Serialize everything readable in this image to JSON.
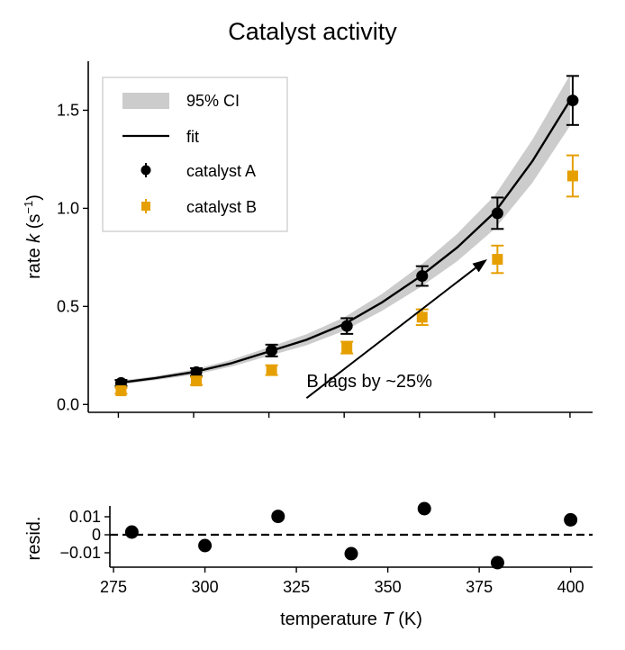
{
  "chart_data": [
    {
      "type": "scatter",
      "title": "Catalyst activity",
      "ylabel_prefix": "rate ",
      "ylabel_var": "k",
      "ylabel_unit": " (s",
      "ylabel_exp": "−1",
      "ylabel_close": ")",
      "xlim": [
        272,
        406
      ],
      "ylim": [
        -0.04,
        1.75
      ],
      "x": [
        280,
        300,
        320,
        340,
        360,
        380,
        400
      ],
      "xticks": [
        280,
        300,
        320,
        340,
        360,
        380,
        400
      ],
      "yticks": [
        0.0,
        0.5,
        1.0,
        1.5
      ],
      "ytick_labels": [
        "0.0",
        "0.5",
        "1.0",
        "1.5"
      ],
      "grid": false,
      "legend_position": "top-left",
      "series": [
        {
          "name": "catalyst A",
          "marker": "circle",
          "color": "#000000",
          "values": [
            0.11,
            0.165,
            0.275,
            0.4,
            0.655,
            0.975,
            1.55
          ],
          "errors": [
            0.015,
            0.02,
            0.03,
            0.04,
            0.05,
            0.08,
            0.125
          ]
        },
        {
          "name": "catalyst B",
          "marker": "square",
          "color": "#E69F00",
          "values": [
            0.07,
            0.12,
            0.175,
            0.29,
            0.445,
            0.74,
            1.165
          ],
          "errors": [
            0.015,
            0.02,
            0.025,
            0.03,
            0.04,
            0.07,
            0.105
          ]
        },
        {
          "name": "fit",
          "type": "line",
          "color": "#000000",
          "x": [
            280,
            290,
            300,
            310,
            320,
            330,
            340,
            350,
            360,
            370,
            380,
            390,
            400
          ],
          "values": [
            0.11,
            0.135,
            0.165,
            0.21,
            0.27,
            0.33,
            0.41,
            0.52,
            0.65,
            0.8,
            0.98,
            1.24,
            1.55
          ]
        },
        {
          "name": "95% CI",
          "type": "area",
          "color": "#cccccc",
          "x": [
            280,
            290,
            300,
            310,
            320,
            330,
            340,
            350,
            360,
            370,
            380,
            390,
            400
          ],
          "lower": [
            0.1,
            0.125,
            0.152,
            0.193,
            0.248,
            0.302,
            0.376,
            0.477,
            0.595,
            0.73,
            0.895,
            1.13,
            1.42
          ],
          "upper": [
            0.12,
            0.145,
            0.178,
            0.227,
            0.292,
            0.358,
            0.444,
            0.563,
            0.705,
            0.87,
            1.065,
            1.35,
            1.68
          ]
        }
      ],
      "annotation": {
        "text": "B lags by ~25%",
        "text_anchor": [
          330,
          0.06
        ],
        "arrow_to": [
          378,
          0.74
        ]
      }
    },
    {
      "type": "scatter",
      "ylabel": "resid.",
      "xlabel_prefix": "temperature ",
      "xlabel_var": "T",
      "xlabel_unit": " (K)",
      "xlim": [
        274,
        406
      ],
      "ylim": [
        -0.018,
        0.016
      ],
      "xticks": [
        275,
        300,
        325,
        350,
        375,
        400
      ],
      "xtick_labels": [
        "275",
        "300",
        "325",
        "350",
        "375",
        "400"
      ],
      "yticks": [
        0.01,
        0,
        -0.01
      ],
      "ytick_labels": [
        "0.01",
        "0",
        "−0.01"
      ],
      "reference_line": 0,
      "series": [
        {
          "name": "",
          "marker": "circle",
          "color": "#000000",
          "x": [
            280,
            300,
            320,
            340,
            360,
            380,
            400
          ],
          "values": [
            0.0015,
            -0.006,
            0.0102,
            -0.0105,
            0.0145,
            -0.0155,
            0.0083
          ]
        }
      ]
    }
  ],
  "legend": {
    "entries": [
      {
        "label": "95% CI",
        "kind": "band",
        "color": "#cccccc"
      },
      {
        "label": "fit",
        "kind": "line",
        "color": "#000000"
      },
      {
        "label": "catalyst A",
        "kind": "circle",
        "color": "#000000"
      },
      {
        "label": "catalyst B",
        "kind": "square",
        "color": "#E69F00"
      }
    ]
  }
}
